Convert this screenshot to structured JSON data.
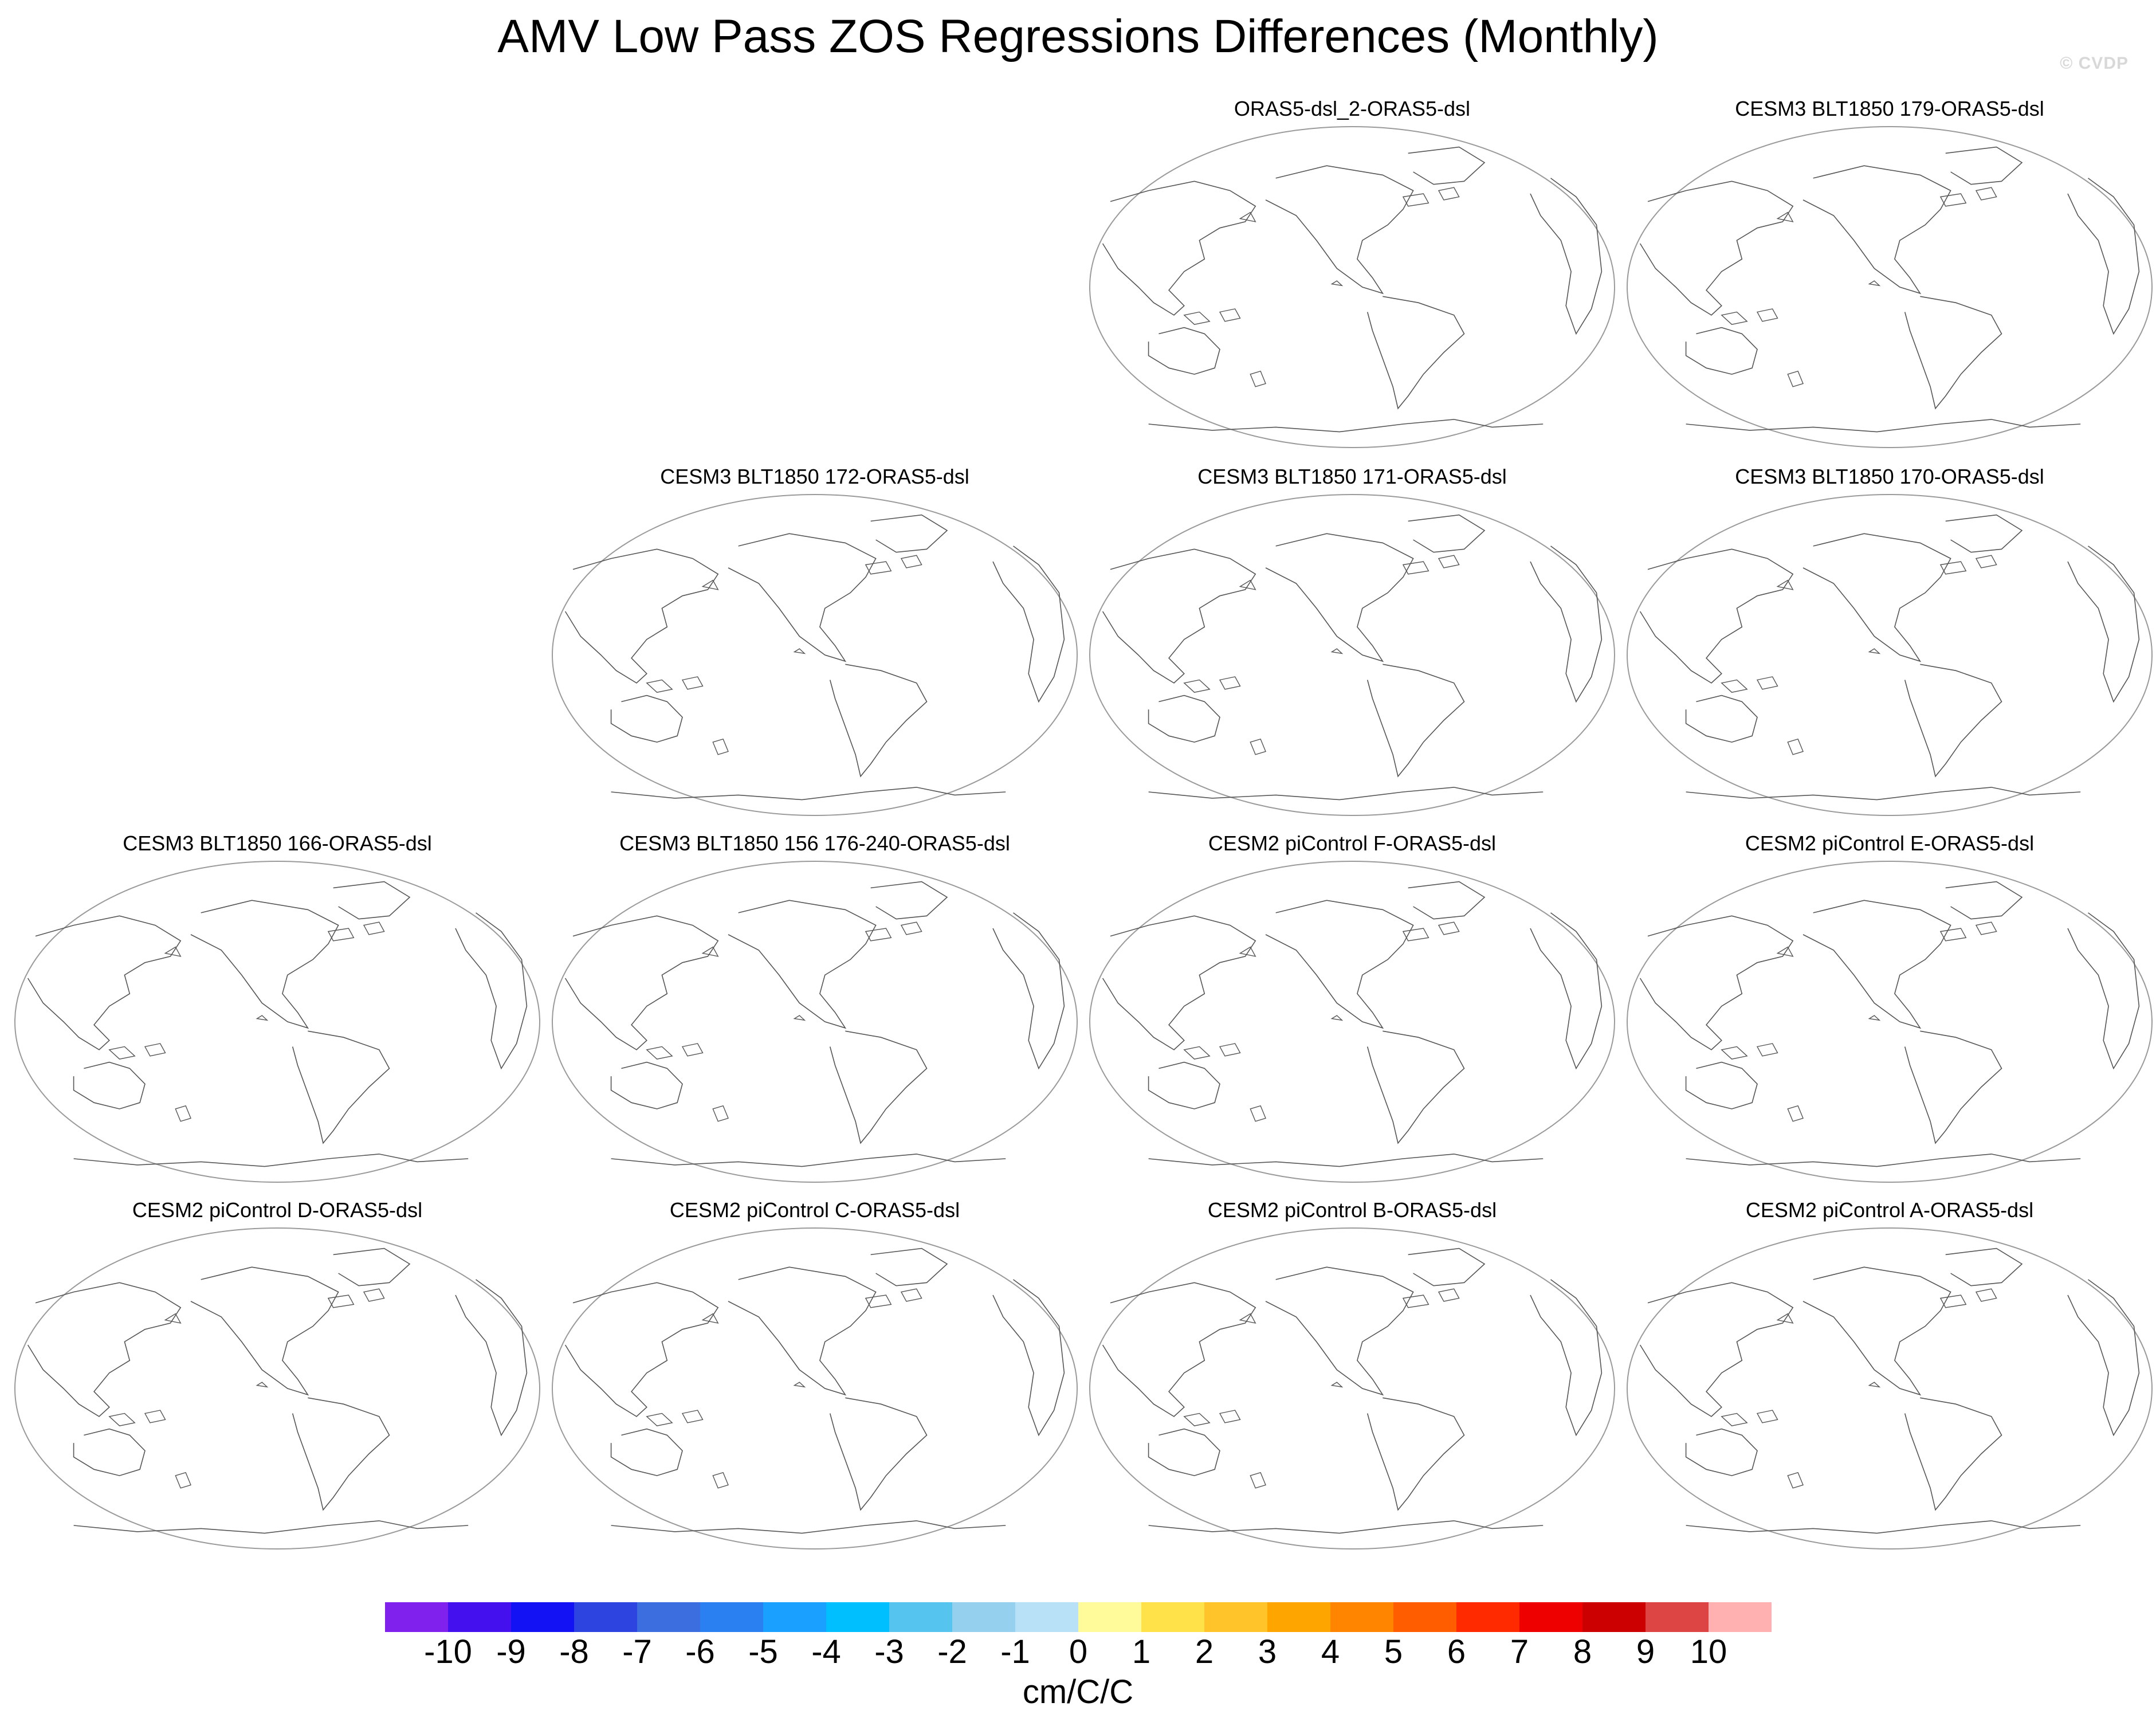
{
  "title": "AMV Low Pass ZOS Regressions Differences (Monthly)",
  "watermark": "© CVDP",
  "chart_data": {
    "type": "map-panels",
    "title": "AMV Low Pass ZOS Regressions Differences (Monthly)",
    "panels": [
      {
        "title": "ORAS5-dsl_2-ORAS5-dsl",
        "row": 0,
        "col": 2
      },
      {
        "title": "CESM3 BLT1850 179-ORAS5-dsl",
        "row": 0,
        "col": 3
      },
      {
        "title": "CESM3 BLT1850 172-ORAS5-dsl",
        "row": 1,
        "col": 1
      },
      {
        "title": "CESM3 BLT1850 171-ORAS5-dsl",
        "row": 1,
        "col": 2
      },
      {
        "title": "CESM3 BLT1850 170-ORAS5-dsl",
        "row": 1,
        "col": 3
      },
      {
        "title": "CESM3 BLT1850 166-ORAS5-dsl",
        "row": 2,
        "col": 0
      },
      {
        "title": "CESM3 BLT1850 156 176-240-ORAS5-dsl",
        "row": 2,
        "col": 1
      },
      {
        "title": "CESM2 piControl F-ORAS5-dsl",
        "row": 2,
        "col": 2
      },
      {
        "title": "CESM2 piControl E-ORAS5-dsl",
        "row": 2,
        "col": 3
      },
      {
        "title": "CESM2 piControl D-ORAS5-dsl",
        "row": 3,
        "col": 0
      },
      {
        "title": "CESM2 piControl C-ORAS5-dsl",
        "row": 3,
        "col": 1
      },
      {
        "title": "CESM2 piControl B-ORAS5-dsl",
        "row": 3,
        "col": 2
      },
      {
        "title": "CESM2 piControl A-ORAS5-dsl",
        "row": 3,
        "col": 3
      }
    ],
    "colorbar": {
      "labels": [
        "-10",
        "-9",
        "-8",
        "-7",
        "-6",
        "-5",
        "-4",
        "-3",
        "-2",
        "-1",
        "0",
        "1",
        "2",
        "3",
        "4",
        "5",
        "6",
        "7",
        "8",
        "9",
        "10"
      ],
      "colors": [
        "#8021ee",
        "#4510ee",
        "#1212f5",
        "#2e44e0",
        "#3c6ee0",
        "#2a80f0",
        "#1aa0ff",
        "#00bfff",
        "#55c5f0",
        "#96d0ef",
        "#b8e0f7",
        "#fffa9a",
        "#ffe24a",
        "#ffc42a",
        "#ffa500",
        "#ff8400",
        "#ff5d00",
        "#ff2a00",
        "#ee0000",
        "#cc0000",
        "#dd4444",
        "#ffb0b0"
      ],
      "units": "cm/C/C"
    }
  }
}
